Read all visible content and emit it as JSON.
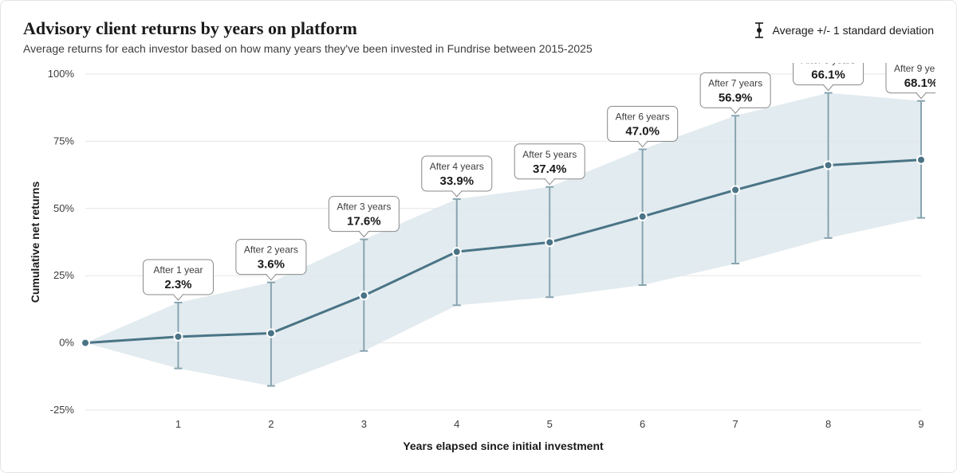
{
  "title": "Advisory client returns by years on platform",
  "subtitle": "Average returns for each investor based on how many years they've been invested in Fundrise between 2015-2025",
  "legend_label": "Average +/- 1 standard deviation",
  "x_axis_title": "Years elapsed since initial investment",
  "y_axis_title": "Cumulative net returns",
  "chart": {
    "type": "line-errorbar-area",
    "x": [
      0,
      1,
      2,
      3,
      4,
      5,
      6,
      7,
      8,
      9
    ],
    "mean": [
      0.0,
      2.3,
      3.6,
      17.6,
      33.9,
      37.4,
      47.0,
      56.9,
      66.1,
      68.1
    ],
    "upper": [
      0.0,
      15.0,
      22.5,
      38.5,
      53.5,
      58.0,
      72.0,
      84.5,
      93.0,
      90.0
    ],
    "lower": [
      0.0,
      -9.5,
      -16.0,
      -3.0,
      14.0,
      17.0,
      21.5,
      29.5,
      39.0,
      46.5
    ],
    "tooltip_prefix": "After ",
    "tooltip_singular": " year",
    "tooltip_plural": " years",
    "ylim": [
      -25,
      100
    ],
    "ytick_step": 25,
    "ytick_suffix": "%",
    "xtick_start": 1,
    "colors": {
      "line": "#4a7486",
      "marker_fill": "#4a7486",
      "marker_stroke": "#ffffff",
      "errorbar": "#89a4b0",
      "band_fill": "#dde7ec",
      "band_opacity": 0.85,
      "grid": "#e5e5e5",
      "tick_text": "#3d3d3d",
      "axis_title": "#1a1a1a",
      "tooltip_bg": "#ffffff",
      "tooltip_border": "#888888"
    },
    "line_width": 3,
    "marker_radius": 5,
    "errorbar_width": 2,
    "errorbar_cap": 10,
    "tooltip_box": {
      "w": 88,
      "h": 44,
      "rx": 6
    }
  }
}
